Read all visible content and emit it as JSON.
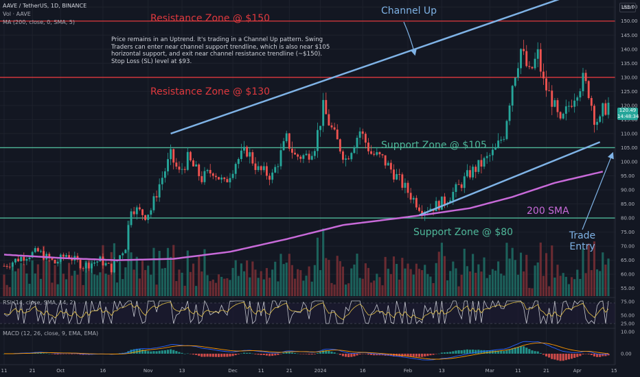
{
  "header": {
    "symbol": "AAVE / TetherUS, 1D, BINANCE",
    "volume": "Vol · AAVE",
    "ma": "MA (200, close, 0, SMA, 5)"
  },
  "currency": "USDT",
  "note": "Price remains in an Uptrend. It's trading in a Channel Up pattern. Swing Traders can enter near channel support trendline, which is also near $105 horizontal support, and exit near channel resistance trendline (~$150). Stop Loss (SL) level at $93.",
  "labels": {
    "resistance_150": "Resistance Zone @ $150",
    "resistance_130": "Resistance Zone @ $130",
    "support_105": "Support Zone @ $105",
    "support_80": "Support Zone @ $80",
    "channel_up": "Channel Up",
    "sma_200": "200 SMA",
    "trade_entry_1": "Trade",
    "trade_entry_2": "Entry"
  },
  "price_badge": {
    "price": "120.49",
    "countdown": "14:48:34"
  },
  "rsi_header": "RSI (14, close, SMA, 14, 2)",
  "macd_header": "MACD (12, 26, close, 9, EMA, EMA)",
  "colors": {
    "up": "#26a69a",
    "down": "#ef5350",
    "sma": "#c86ad9",
    "channel": "#7fb3e6",
    "resistance": "#e0393e",
    "support": "#4fb89a"
  },
  "chart_data": {
    "type": "candlestick",
    "price_axis": {
      "ticks": [
        55,
        60,
        65,
        70,
        75,
        80,
        85,
        90,
        95,
        100,
        105,
        110,
        115,
        120,
        125,
        130,
        135,
        140,
        145,
        150,
        155
      ],
      "range": [
        55,
        157
      ]
    },
    "rsi_axis": {
      "ticks": [
        "75.00",
        "50.00",
        "25.00"
      ]
    },
    "macd_axis": {
      "ticks": [
        "10.00",
        "0.00"
      ]
    },
    "time_axis": [
      {
        "label": "11",
        "idx": 0
      },
      {
        "label": "21",
        "idx": 10
      },
      {
        "label": "Oct",
        "idx": 20
      },
      {
        "label": "16",
        "idx": 35
      },
      {
        "label": "Nov",
        "idx": 51
      },
      {
        "label": "13",
        "idx": 63
      },
      {
        "label": "Dec",
        "idx": 81
      },
      {
        "label": "11",
        "idx": 91
      },
      {
        "label": "21",
        "idx": 101
      },
      {
        "label": "2024",
        "idx": 112
      },
      {
        "label": "16",
        "idx": 127
      },
      {
        "label": "Feb",
        "idx": 143
      },
      {
        "label": "13",
        "idx": 155
      },
      {
        "label": "Mar",
        "idx": 172
      },
      {
        "label": "11",
        "idx": 182
      },
      {
        "label": "21",
        "idx": 192
      },
      {
        "label": "Apr",
        "idx": 203
      },
      {
        "label": "15",
        "idx": 216
      }
    ],
    "horizontal_levels": [
      {
        "name": "resistance",
        "price": 150
      },
      {
        "name": "resistance",
        "price": 130
      },
      {
        "name": "support",
        "price": 105
      },
      {
        "name": "support",
        "price": 80
      }
    ],
    "channel": {
      "upper": [
        {
          "idx": 59,
          "price": 110
        },
        {
          "idx": 203,
          "price": 160
        }
      ],
      "lower": [
        {
          "idx": 147,
          "price": 81
        },
        {
          "idx": 211,
          "price": 107
        }
      ]
    },
    "sma200_anchors": [
      {
        "idx": 0,
        "price": 67
      },
      {
        "idx": 20,
        "price": 65.8
      },
      {
        "idx": 40,
        "price": 65
      },
      {
        "idx": 60,
        "price": 65.5
      },
      {
        "idx": 80,
        "price": 68
      },
      {
        "idx": 100,
        "price": 72.5
      },
      {
        "idx": 120,
        "price": 77.5
      },
      {
        "idx": 140,
        "price": 80
      },
      {
        "idx": 150,
        "price": 81.3
      },
      {
        "idx": 165,
        "price": 83.5
      },
      {
        "idx": 180,
        "price": 87.5
      },
      {
        "idx": 195,
        "price": 92.5
      },
      {
        "idx": 212,
        "price": 96.5
      }
    ],
    "close_anchors": [
      {
        "idx": 0,
        "price": 63
      },
      {
        "idx": 6,
        "price": 66
      },
      {
        "idx": 12,
        "price": 68
      },
      {
        "idx": 18,
        "price": 64
      },
      {
        "idx": 22,
        "price": 67
      },
      {
        "idx": 28,
        "price": 63
      },
      {
        "idx": 34,
        "price": 65
      },
      {
        "idx": 38,
        "price": 62
      },
      {
        "idx": 43,
        "price": 70
      },
      {
        "idx": 45,
        "price": 84
      },
      {
        "idx": 50,
        "price": 81
      },
      {
        "idx": 52,
        "price": 83
      },
      {
        "idx": 55,
        "price": 92
      },
      {
        "idx": 59,
        "price": 102
      },
      {
        "idx": 62,
        "price": 96
      },
      {
        "idx": 65,
        "price": 101
      },
      {
        "idx": 70,
        "price": 94
      },
      {
        "idx": 74,
        "price": 97
      },
      {
        "idx": 78,
        "price": 92
      },
      {
        "idx": 82,
        "price": 100
      },
      {
        "idx": 86,
        "price": 104
      },
      {
        "idx": 90,
        "price": 97
      },
      {
        "idx": 95,
        "price": 95
      },
      {
        "idx": 100,
        "price": 108
      },
      {
        "idx": 103,
        "price": 102
      },
      {
        "idx": 107,
        "price": 102
      },
      {
        "idx": 110,
        "price": 106
      },
      {
        "idx": 113,
        "price": 119
      },
      {
        "idx": 117,
        "price": 109
      },
      {
        "idx": 121,
        "price": 101
      },
      {
        "idx": 126,
        "price": 111
      },
      {
        "idx": 130,
        "price": 103
      },
      {
        "idx": 134,
        "price": 101
      },
      {
        "idx": 138,
        "price": 96
      },
      {
        "idx": 144,
        "price": 88
      },
      {
        "idx": 148,
        "price": 83
      },
      {
        "idx": 152,
        "price": 84
      },
      {
        "idx": 156,
        "price": 86
      },
      {
        "idx": 160,
        "price": 90
      },
      {
        "idx": 165,
        "price": 96
      },
      {
        "idx": 170,
        "price": 100
      },
      {
        "idx": 174,
        "price": 104
      },
      {
        "idx": 177,
        "price": 110
      },
      {
        "idx": 180,
        "price": 128
      },
      {
        "idx": 183,
        "price": 140
      },
      {
        "idx": 186,
        "price": 131
      },
      {
        "idx": 189,
        "price": 138
      },
      {
        "idx": 191,
        "price": 128
      },
      {
        "idx": 194,
        "price": 122
      },
      {
        "idx": 197,
        "price": 113
      },
      {
        "idx": 200,
        "price": 120
      },
      {
        "idx": 203,
        "price": 126
      },
      {
        "idx": 205,
        "price": 129
      },
      {
        "idx": 207,
        "price": 125
      },
      {
        "idx": 209,
        "price": 116
      },
      {
        "idx": 211,
        "price": 114
      },
      {
        "idx": 212,
        "price": 118
      },
      {
        "idx": 214,
        "price": 120.5
      }
    ]
  }
}
